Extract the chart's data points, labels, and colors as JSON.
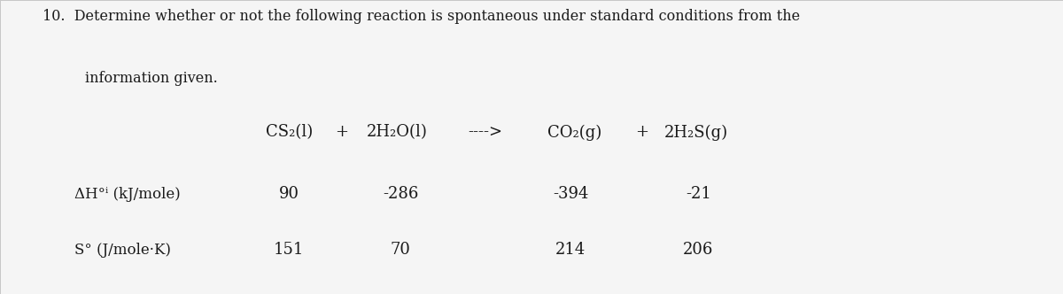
{
  "background_color": "#d8d8d8",
  "paper_color": "#f5f5f5",
  "title_line1": "10.  Determine whether or not the following reaction is spontaneous under standard conditions from the",
  "title_line2": "information given.",
  "reaction": {
    "cs2": "CS₂(l)",
    "plus1": "+",
    "h2o": "2H₂O(l)",
    "arrow": "---->",
    "co2": "CO₂(g)",
    "plus2": "+",
    "h2s": "2H₂S(g)"
  },
  "row_labels": [
    "ΔH°ⁱ (kJ/mole)",
    "S° (J/mole·K)"
  ],
  "dh_values": [
    "90",
    "-286",
    "-394",
    "-21"
  ],
  "s_values": [
    "151",
    "70",
    "214",
    "206"
  ],
  "text_color": "#1a1a1a",
  "fontsize_title": 11.5,
  "fontsize_reaction": 13,
  "fontsize_data": 13,
  "fontsize_labels": 12
}
